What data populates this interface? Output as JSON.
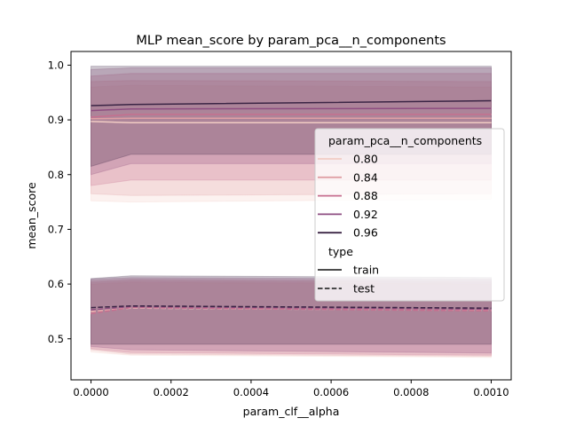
{
  "chart_data": {
    "type": "line",
    "title": "MLP mean_score by param_pca__n_components",
    "xlabel": "param_clf__alpha",
    "ylabel": "mean_score",
    "xlim": [
      -5e-05,
      0.00105
    ],
    "ylim": [
      0.425,
      1.025
    ],
    "x_ticks": [
      0.0,
      0.0002,
      0.0004,
      0.0006,
      0.0008,
      0.001
    ],
    "x_tick_labels": [
      "0.0000",
      "0.0002",
      "0.0004",
      "0.0006",
      "0.0008",
      "0.0010"
    ],
    "y_ticks": [
      0.5,
      0.6,
      0.7,
      0.8,
      0.9,
      1.0
    ],
    "y_tick_labels": [
      "0.5",
      "0.6",
      "0.7",
      "0.8",
      "0.9",
      "1.0"
    ],
    "x": [
      0.0,
      0.0001,
      0.001
    ],
    "legend": {
      "position": "center-right",
      "hue_title": "param_pca__n_components",
      "hue_entries": [
        "0.80",
        "0.84",
        "0.88",
        "0.92",
        "0.96"
      ],
      "style_title": "type",
      "style_entries": [
        "train",
        "test"
      ]
    },
    "series": [
      {
        "component": "0.80",
        "type": "train",
        "color": "#f2ccc4",
        "values": [
          0.897,
          0.895,
          0.895
        ],
        "ci_low": [
          0.752,
          0.75,
          0.755
        ],
        "ci_high": [
          0.96,
          0.963,
          0.96
        ]
      },
      {
        "component": "0.84",
        "type": "train",
        "color": "#e0a0a5",
        "values": [
          0.902,
          0.903,
          0.903
        ],
        "ci_low": [
          0.765,
          0.762,
          0.765
        ],
        "ci_high": [
          0.97,
          0.972,
          0.97
        ]
      },
      {
        "component": "0.88",
        "type": "train",
        "color": "#c66f8f",
        "values": [
          0.905,
          0.91,
          0.91
        ],
        "ci_low": [
          0.78,
          0.79,
          0.79
        ],
        "ci_high": [
          0.98,
          0.985,
          0.985
        ]
      },
      {
        "component": "0.92",
        "type": "train",
        "color": "#8e4e81",
        "values": [
          0.917,
          0.92,
          0.921
        ],
        "ci_low": [
          0.8,
          0.82,
          0.82
        ],
        "ci_high": [
          0.992,
          0.995,
          0.995
        ]
      },
      {
        "component": "0.96",
        "type": "train",
        "color": "#3b2545",
        "values": [
          0.926,
          0.928,
          0.935
        ],
        "ci_low": [
          0.815,
          0.837,
          0.837
        ],
        "ci_high": [
          0.998,
          0.998,
          0.998
        ]
      },
      {
        "component": "0.80",
        "type": "test",
        "color": "#f2ccc4",
        "values": [
          0.55,
          0.556,
          0.552
        ],
        "ci_low": [
          0.476,
          0.47,
          0.466
        ],
        "ci_high": [
          0.6,
          0.603,
          0.6
        ]
      },
      {
        "component": "0.84",
        "type": "test",
        "color": "#e0a0a5",
        "values": [
          0.549,
          0.557,
          0.552
        ],
        "ci_low": [
          0.48,
          0.472,
          0.468
        ],
        "ci_high": [
          0.603,
          0.606,
          0.603
        ]
      },
      {
        "component": "0.88",
        "type": "test",
        "color": "#c66f8f",
        "values": [
          0.546,
          0.557,
          0.551
        ],
        "ci_low": [
          0.482,
          0.475,
          0.47
        ],
        "ci_high": [
          0.606,
          0.609,
          0.606
        ]
      },
      {
        "component": "0.92",
        "type": "test",
        "color": "#8e4e81",
        "values": [
          0.553,
          0.559,
          0.554
        ],
        "ci_low": [
          0.486,
          0.48,
          0.474
        ],
        "ci_high": [
          0.609,
          0.612,
          0.609
        ]
      },
      {
        "component": "0.96",
        "type": "test",
        "color": "#3b2545",
        "values": [
          0.557,
          0.56,
          0.556
        ],
        "ci_low": [
          0.49,
          0.49,
          0.49
        ],
        "ci_high": [
          0.61,
          0.615,
          0.612
        ]
      }
    ]
  }
}
